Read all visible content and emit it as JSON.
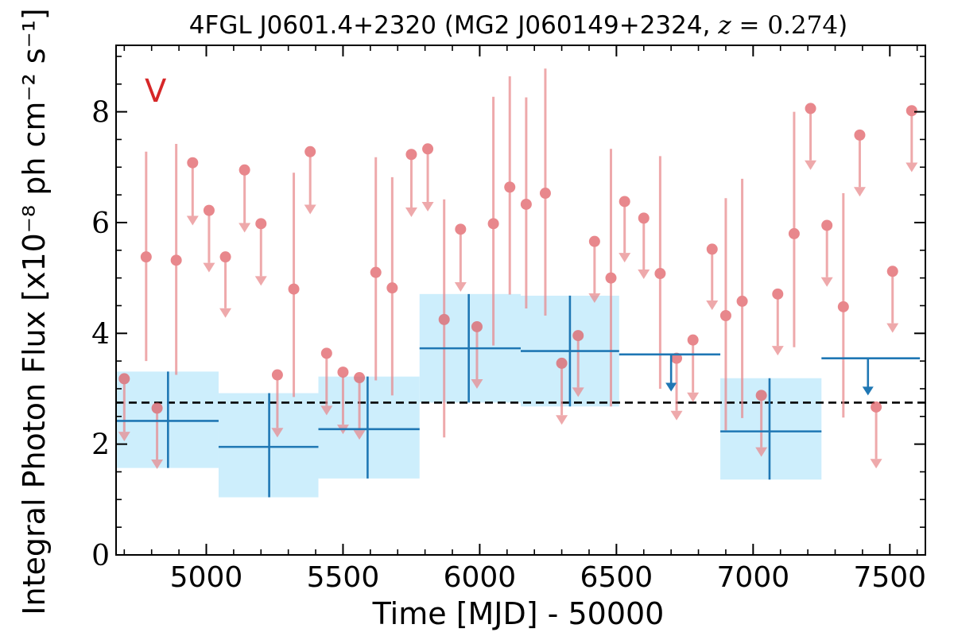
{
  "chart_data": {
    "type": "scatter",
    "title": "4FGL J0601.4+2320 (MG2 J060149+2324, z = 0.274)",
    "title_parts": {
      "main": "4FGL J0601.4+2320 (MG2 J060149+2324, ",
      "z_symbol": "z",
      "z_value": " = 0.274",
      "close": ")"
    },
    "xlabel": "Time [MJD] - 50000",
    "ylabel": "Integral Photon Flux [x10⁻⁸ ph cm⁻² s⁻¹]",
    "panel_label": "V",
    "panel_label_color": "#d62728",
    "xlim": [
      4670,
      7630
    ],
    "ylim": [
      0,
      9.2
    ],
    "x_ticks": [
      5000,
      5500,
      6000,
      6500,
      7000,
      7500
    ],
    "y_ticks": [
      0,
      2,
      4,
      6,
      8
    ],
    "x_ticks_minor": [
      4700,
      4800,
      4900,
      5100,
      5200,
      5300,
      5400,
      5600,
      5700,
      5800,
      5900,
      6100,
      6200,
      6300,
      6400,
      6600,
      6700,
      6800,
      6900,
      7100,
      7200,
      7300,
      7400,
      7600
    ],
    "y_ticks_minor": [
      0.5,
      1,
      1.5,
      2.5,
      3,
      3.5,
      4.5,
      5,
      5.5,
      6.5,
      7,
      7.5,
      8.5,
      9
    ],
    "grid": false,
    "reference_line": {
      "value": 2.75,
      "style": "dashed",
      "color": "#000000"
    },
    "series": [
      {
        "role": "fine-bins-upper-limits",
        "color": "#e8888c",
        "points": [
          {
            "x": 4700,
            "y": 3.18,
            "limit_to": 2.05
          },
          {
            "x": 4820,
            "y": 2.65,
            "limit_to": 1.55
          },
          {
            "x": 4950,
            "y": 7.08,
            "limit_to": 5.95
          },
          {
            "x": 5010,
            "y": 6.22,
            "limit_to": 5.1
          },
          {
            "x": 5070,
            "y": 5.38,
            "limit_to": 4.28
          },
          {
            "x": 5140,
            "y": 6.95,
            "limit_to": 5.82
          },
          {
            "x": 5200,
            "y": 5.98,
            "limit_to": 4.86
          },
          {
            "x": 5260,
            "y": 3.25,
            "limit_to": 2.12
          },
          {
            "x": 5380,
            "y": 7.28,
            "limit_to": 6.15
          },
          {
            "x": 5440,
            "y": 3.64,
            "limit_to": 2.52
          },
          {
            "x": 5500,
            "y": 3.3,
            "limit_to": 2.18
          },
          {
            "x": 5560,
            "y": 3.2,
            "limit_to": 2.08
          },
          {
            "x": 5750,
            "y": 7.23,
            "limit_to": 6.1
          },
          {
            "x": 5810,
            "y": 7.33,
            "limit_to": 6.2
          },
          {
            "x": 5930,
            "y": 5.88,
            "limit_to": 4.75
          },
          {
            "x": 5990,
            "y": 4.12,
            "limit_to": 3.0
          },
          {
            "x": 6300,
            "y": 3.46,
            "limit_to": 2.35
          },
          {
            "x": 6360,
            "y": 3.96,
            "limit_to": 2.85
          },
          {
            "x": 6420,
            "y": 5.66,
            "limit_to": 4.55
          },
          {
            "x": 6530,
            "y": 6.38,
            "limit_to": 5.28
          },
          {
            "x": 6600,
            "y": 6.08,
            "limit_to": 4.98
          },
          {
            "x": 6720,
            "y": 3.55,
            "limit_to": 2.43
          },
          {
            "x": 6780,
            "y": 3.88,
            "limit_to": 2.76
          },
          {
            "x": 6850,
            "y": 5.52,
            "limit_to": 4.42
          },
          {
            "x": 7030,
            "y": 2.88,
            "limit_to": 1.77
          },
          {
            "x": 7090,
            "y": 4.71,
            "limit_to": 3.6
          },
          {
            "x": 7210,
            "y": 8.06,
            "limit_to": 6.95
          },
          {
            "x": 7270,
            "y": 5.95,
            "limit_to": 4.84
          },
          {
            "x": 7390,
            "y": 7.58,
            "limit_to": 6.47
          },
          {
            "x": 7450,
            "y": 2.67,
            "limit_to": 1.56
          },
          {
            "x": 7510,
            "y": 5.12,
            "limit_to": 4.01
          },
          {
            "x": 7580,
            "y": 8.02,
            "limit_to": 6.91
          }
        ]
      },
      {
        "role": "fine-bins-detections",
        "color": "#e8888c",
        "points": [
          {
            "x": 4780,
            "y": 5.38,
            "ylo": 3.5,
            "yhi": 7.28
          },
          {
            "x": 4890,
            "y": 5.32,
            "ylo": 3.25,
            "yhi": 7.42
          },
          {
            "x": 5320,
            "y": 4.8,
            "ylo": 2.85,
            "yhi": 6.9
          },
          {
            "x": 5620,
            "y": 5.1,
            "ylo": 3.15,
            "yhi": 7.18
          },
          {
            "x": 5680,
            "y": 4.82,
            "ylo": 2.88,
            "yhi": 6.82
          },
          {
            "x": 5870,
            "y": 4.25,
            "ylo": 2.12,
            "yhi": 6.42
          },
          {
            "x": 6050,
            "y": 5.98,
            "ylo": 3.78,
            "yhi": 8.27
          },
          {
            "x": 6110,
            "y": 6.64,
            "ylo": 4.7,
            "yhi": 8.64
          },
          {
            "x": 6170,
            "y": 6.33,
            "ylo": 4.45,
            "yhi": 8.26
          },
          {
            "x": 6240,
            "y": 6.53,
            "ylo": 4.32,
            "yhi": 8.78
          },
          {
            "x": 6480,
            "y": 5.0,
            "ylo": 2.68,
            "yhi": 7.33
          },
          {
            "x": 6660,
            "y": 5.08,
            "ylo": 3.0,
            "yhi": 7.2
          },
          {
            "x": 6900,
            "y": 4.32,
            "ylo": 2.25,
            "yhi": 6.44
          },
          {
            "x": 6960,
            "y": 4.58,
            "ylo": 2.47,
            "yhi": 6.79
          },
          {
            "x": 7150,
            "y": 5.8,
            "ylo": 3.75,
            "yhi": 8.0
          },
          {
            "x": 7330,
            "y": 4.48,
            "ylo": 2.48,
            "yhi": 6.53
          }
        ]
      },
      {
        "role": "coarse-bins-detections",
        "color": "#1f77b4",
        "band_color": "#cdeefc",
        "points": [
          {
            "x": 4860,
            "xlo": 4670,
            "xhi": 5045,
            "y": 2.42,
            "ylo": 1.57,
            "yhi": 3.31
          },
          {
            "x": 5230,
            "xlo": 5045,
            "xhi": 5410,
            "y": 1.95,
            "ylo": 1.04,
            "yhi": 2.92
          },
          {
            "x": 5590,
            "xlo": 5410,
            "xhi": 5780,
            "y": 2.27,
            "ylo": 1.38,
            "yhi": 3.22
          },
          {
            "x": 5960,
            "xlo": 5780,
            "xhi": 6150,
            "y": 3.73,
            "ylo": 2.75,
            "yhi": 4.71
          },
          {
            "x": 6330,
            "xlo": 6150,
            "xhi": 6510,
            "y": 3.68,
            "ylo": 2.68,
            "yhi": 4.68
          },
          {
            "x": 7060,
            "xlo": 6880,
            "xhi": 7250,
            "y": 2.23,
            "ylo": 1.36,
            "yhi": 3.19
          }
        ]
      },
      {
        "role": "coarse-bins-upper-limits",
        "color": "#1f77b4",
        "points": [
          {
            "x": 6700,
            "xlo": 6510,
            "xhi": 6880,
            "y": 3.62,
            "limit_to": 2.95
          },
          {
            "x": 7420,
            "xlo": 7250,
            "xhi": 7610,
            "y": 3.55,
            "limit_to": 2.88
          }
        ]
      }
    ]
  }
}
